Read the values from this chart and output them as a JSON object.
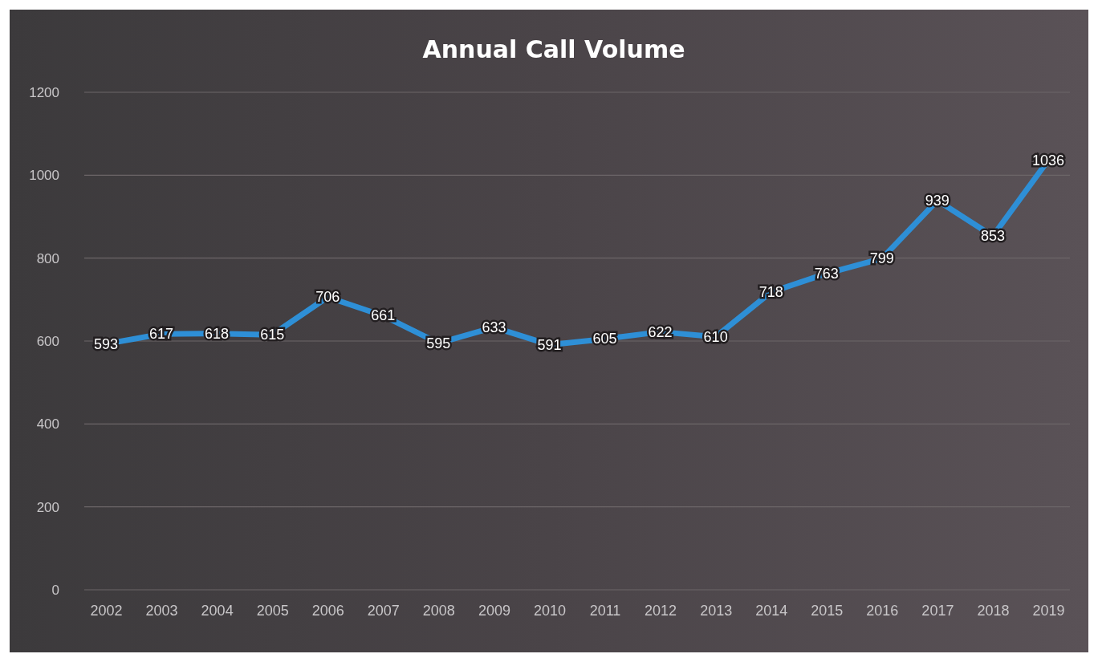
{
  "chart_data": {
    "type": "line",
    "title": "Annual Call Volume",
    "categories": [
      "2002",
      "2003",
      "2004",
      "2005",
      "2006",
      "2007",
      "2008",
      "2009",
      "2010",
      "2011",
      "2012",
      "2013",
      "2014",
      "2015",
      "2016",
      "2017",
      "2018",
      "2019"
    ],
    "series": [
      {
        "color": "#2e8fd6",
        "values": [
          593,
          617,
          618,
          615,
          706,
          661,
          595,
          633,
          591,
          605,
          622,
          610,
          718,
          763,
          799,
          939,
          853,
          1036
        ]
      }
    ],
    "ylim": [
      0,
      1200
    ],
    "yticks": [
      0,
      200,
      400,
      600,
      800,
      1000,
      1200
    ],
    "grid": "y",
    "data_labels": true,
    "line_style": "solid"
  }
}
